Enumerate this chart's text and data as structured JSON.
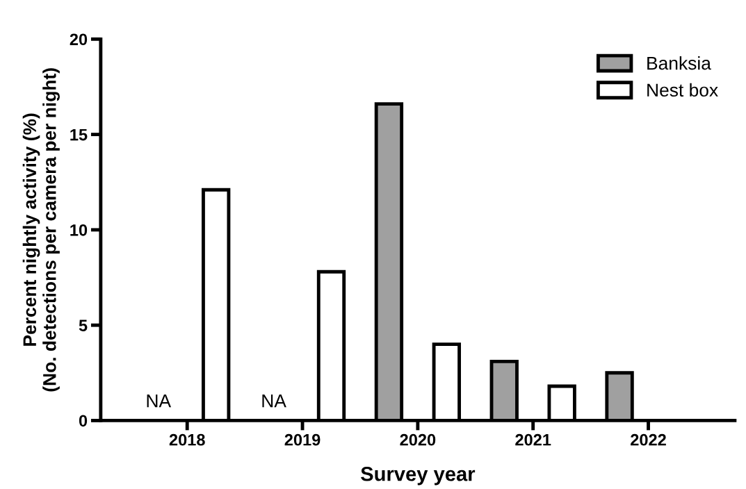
{
  "chart_data": {
    "type": "bar",
    "xlabel": "Survey year",
    "ylabel": "Percent nightly activity (%)\n(No. detections per camera per night)",
    "categories": [
      "2018",
      "2019",
      "2020",
      "2021",
      "2022"
    ],
    "series": [
      {
        "name": "Banksia",
        "color": "#a0a0a0",
        "values": [
          null,
          null,
          16.6,
          3.1,
          2.5
        ]
      },
      {
        "name": "Nest box",
        "color": "#ffffff",
        "values": [
          12.1,
          7.8,
          4.0,
          1.8,
          null
        ]
      }
    ],
    "annotations": [
      "NA",
      "NA"
    ],
    "ylim": [
      0,
      20
    ],
    "yticks": [
      0,
      5,
      10,
      15,
      20
    ],
    "grid": false,
    "legend": "top right"
  }
}
